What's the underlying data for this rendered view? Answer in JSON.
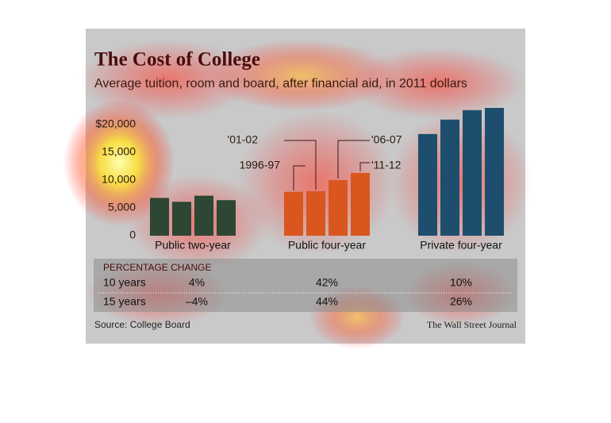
{
  "chart_data": {
    "type": "grouped_bar",
    "title": "The Cost of College",
    "subtitle": "Average tuition, room and board, after financial aid, in 2011 dollars",
    "categories": [
      "Public two-year",
      "Public four-year",
      "Private four-year"
    ],
    "category_colors": [
      "#2e4634",
      "#d9561e",
      "#1d4e6e"
    ],
    "series": [
      {
        "name": "1996-97",
        "values": [
          6800,
          7900,
          18300
        ]
      },
      {
        "name": "'01-02",
        "values": [
          6100,
          8000,
          20900
        ]
      },
      {
        "name": "'06-07",
        "values": [
          7200,
          10000,
          22600
        ]
      },
      {
        "name": "'11-12",
        "values": [
          6400,
          11300,
          23000
        ]
      }
    ],
    "ylim": [
      0,
      24000
    ],
    "yticks": [
      {
        "value": 0,
        "label": "0"
      },
      {
        "value": 5000,
        "label": "5,000"
      },
      {
        "value": 10000,
        "label": "10,000"
      },
      {
        "value": 15000,
        "label": "15,000"
      },
      {
        "value": 20000,
        "label": "$20,000"
      }
    ],
    "table": {
      "title": "PERCENTAGE CHANGE",
      "rows": [
        [
          "10 years",
          "4%",
          "42%",
          "10%"
        ],
        [
          "15 years",
          "–4%",
          "44%",
          "26%"
        ]
      ]
    },
    "source": "Source: College Board",
    "credit": "The Wall Street Journal"
  }
}
